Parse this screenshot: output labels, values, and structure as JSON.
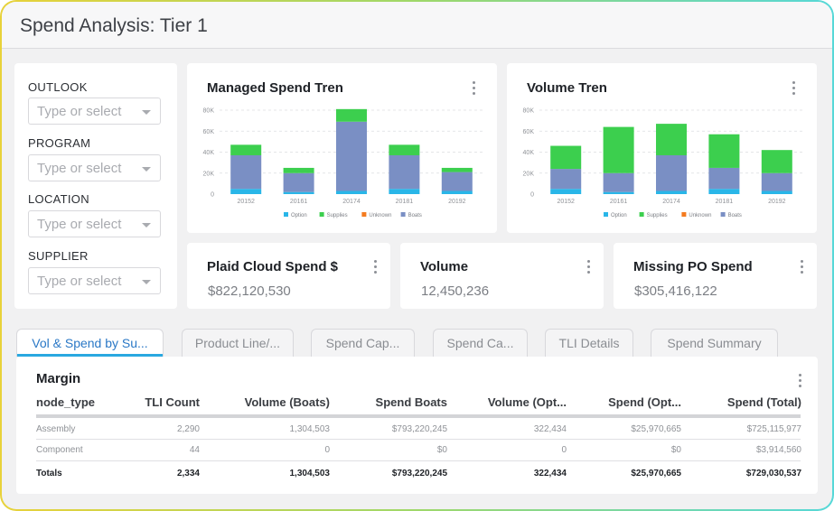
{
  "header": {
    "title": "Spend Analysis: Tier 1"
  },
  "filters": [
    {
      "label": "OUTLOOK",
      "placeholder": "Type or select"
    },
    {
      "label": "PROGRAM",
      "placeholder": "Type or select"
    },
    {
      "label": "LOCATION",
      "placeholder": "Type or select"
    },
    {
      "label": "SUPPLIER",
      "placeholder": "Type or select"
    }
  ],
  "charts": {
    "managed_title": "Managed Spend Tren",
    "volume_title": "Volume Tren"
  },
  "chart_data": [
    {
      "type": "bar",
      "stacked": true,
      "title": "Managed Spend Tren",
      "categories": [
        "20152",
        "20161",
        "20174",
        "20181",
        "20192"
      ],
      "ylim": [
        0,
        80000
      ],
      "yticks": [
        "0",
        "20K",
        "40K",
        "60K",
        "80K"
      ],
      "grid": true,
      "legend": "bottom",
      "series": [
        {
          "name": "Option",
          "color": "#29b6e8",
          "values": [
            5000,
            2000,
            3000,
            5000,
            3000
          ]
        },
        {
          "name": "Supplies",
          "color": "#3ccf4e",
          "values": [
            10000,
            5000,
            12000,
            10000,
            4000
          ]
        },
        {
          "name": "Unknown",
          "color": "#f47b20",
          "values": [
            0,
            0,
            0,
            0,
            0
          ]
        },
        {
          "name": "Boats",
          "color": "#7a8fc4",
          "values": [
            32000,
            18000,
            66000,
            32000,
            18000
          ]
        }
      ]
    },
    {
      "type": "bar",
      "stacked": true,
      "title": "Volume Tren",
      "categories": [
        "20152",
        "20161",
        "20174",
        "20181",
        "20192"
      ],
      "ylim": [
        0,
        80000
      ],
      "yticks": [
        "0",
        "20K",
        "40K",
        "60K",
        "80K"
      ],
      "grid": true,
      "legend": "bottom",
      "series": [
        {
          "name": "Option",
          "color": "#29b6e8",
          "values": [
            5000,
            2000,
            3000,
            5000,
            3000
          ]
        },
        {
          "name": "Supplies",
          "color": "#3ccf4e",
          "values": [
            22000,
            44000,
            30000,
            32000,
            22000
          ]
        },
        {
          "name": "Unknown",
          "color": "#f47b20",
          "values": [
            0,
            0,
            0,
            0,
            0
          ]
        },
        {
          "name": "Boats",
          "color": "#7a8fc4",
          "values": [
            19000,
            18000,
            34000,
            20000,
            17000
          ]
        }
      ]
    }
  ],
  "kpis": [
    {
      "title": "Plaid Cloud Spend $",
      "value": "$822,120,530"
    },
    {
      "title": "Volume",
      "value": "12,450,236"
    },
    {
      "title": "Missing PO Spend",
      "value": "$305,416,122"
    }
  ],
  "tabs": [
    {
      "label": "Vol & Spend by Su...",
      "active": true
    },
    {
      "label": "Product Line/...",
      "active": false
    },
    {
      "label": "Spend Cap...",
      "active": false
    },
    {
      "label": "Spend Ca...",
      "active": false
    },
    {
      "label": "TLI Details",
      "active": false
    },
    {
      "label": "Spend Summary",
      "active": false
    }
  ],
  "table": {
    "title": "Margin",
    "columns": [
      "node_type",
      "TLI Count",
      "Volume (Boats)",
      "Spend Boats",
      "Volume (Opt...",
      "Spend (Opt...",
      "Spend (Total)"
    ],
    "rows": [
      [
        "Assembly",
        "2,290",
        "1,304,503",
        "$793,220,245",
        "322,434",
        "$25,970,665",
        "$725,115,977"
      ],
      [
        "Component",
        "44",
        "0",
        "$0",
        "0",
        "$0",
        "$3,914,560"
      ]
    ],
    "totals": [
      "Totals",
      "2,334",
      "1,304,503",
      "$793,220,245",
      "322,434",
      "$25,970,665",
      "$729,030,537"
    ]
  }
}
